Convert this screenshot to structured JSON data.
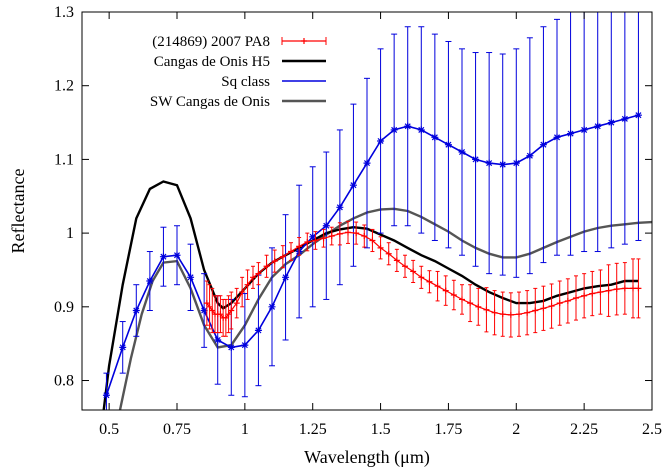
{
  "chart_data": {
    "type": "line",
    "title": "",
    "xlabel": "Wavelength (μm)",
    "ylabel": "Reflectance",
    "xlim": [
      0.4,
      2.5
    ],
    "ylim": [
      0.76,
      1.3
    ],
    "xticks": [
      {
        "v": 0.5,
        "label": "0.5"
      },
      {
        "v": 0.75,
        "label": "0.75"
      },
      {
        "v": 1.0,
        "label": "1"
      },
      {
        "v": 1.25,
        "label": "1.25"
      },
      {
        "v": 1.5,
        "label": "1.5"
      },
      {
        "v": 1.75,
        "label": "1.75"
      },
      {
        "v": 2.0,
        "label": "2"
      },
      {
        "v": 2.25,
        "label": "2.25"
      },
      {
        "v": 2.5,
        "label": "2.5"
      }
    ],
    "yticks": [
      {
        "v": 0.8,
        "label": "0.8"
      },
      {
        "v": 0.9,
        "label": "0.9"
      },
      {
        "v": 1.0,
        "label": "1"
      },
      {
        "v": 1.1,
        "label": "1.1"
      },
      {
        "v": 1.2,
        "label": "1.2"
      },
      {
        "v": 1.3,
        "label": "1.3"
      }
    ],
    "grid": false,
    "legend_position": "top-left",
    "series": [
      {
        "name": "(214869) 2007 PA8",
        "style": "points-errorbars",
        "color": "#ff0000",
        "x": [
          0.86,
          0.87,
          0.88,
          0.89,
          0.9,
          0.91,
          0.92,
          0.93,
          0.94,
          0.95,
          0.97,
          0.99,
          1.01,
          1.03,
          1.05,
          1.08,
          1.11,
          1.14,
          1.17,
          1.2,
          1.23,
          1.26,
          1.29,
          1.32,
          1.35,
          1.38,
          1.41,
          1.44,
          1.47,
          1.5,
          1.53,
          1.56,
          1.59,
          1.62,
          1.65,
          1.68,
          1.71,
          1.74,
          1.77,
          1.8,
          1.83,
          1.86,
          1.89,
          1.92,
          1.95,
          1.98,
          2.01,
          2.04,
          2.07,
          2.1,
          2.13,
          2.16,
          2.19,
          2.22,
          2.25,
          2.28,
          2.31,
          2.34,
          2.37,
          2.4,
          2.43,
          2.45
        ],
        "y": [
          0.905,
          0.9,
          0.895,
          0.89,
          0.89,
          0.89,
          0.885,
          0.885,
          0.89,
          0.895,
          0.905,
          0.92,
          0.93,
          0.94,
          0.945,
          0.955,
          0.962,
          0.968,
          0.975,
          0.982,
          0.988,
          0.99,
          0.993,
          0.996,
          0.999,
          1.001,
          1.0,
          0.996,
          0.99,
          0.98,
          0.972,
          0.963,
          0.955,
          0.948,
          0.94,
          0.934,
          0.928,
          0.922,
          0.916,
          0.91,
          0.905,
          0.9,
          0.896,
          0.892,
          0.89,
          0.889,
          0.89,
          0.892,
          0.895,
          0.898,
          0.901,
          0.905,
          0.908,
          0.912,
          0.915,
          0.918,
          0.92,
          0.922,
          0.924,
          0.925,
          0.925,
          0.925
        ],
        "err": [
          0.03,
          0.03,
          0.03,
          0.025,
          0.025,
          0.025,
          0.025,
          0.025,
          0.025,
          0.025,
          0.02,
          0.02,
          0.02,
          0.015,
          0.015,
          0.015,
          0.015,
          0.015,
          0.012,
          0.012,
          0.012,
          0.012,
          0.012,
          0.012,
          0.015,
          0.015,
          0.015,
          0.015,
          0.015,
          0.015,
          0.015,
          0.015,
          0.015,
          0.015,
          0.015,
          0.015,
          0.02,
          0.02,
          0.02,
          0.02,
          0.025,
          0.025,
          0.03,
          0.03,
          0.03,
          0.03,
          0.03,
          0.03,
          0.03,
          0.03,
          0.03,
          0.03,
          0.03,
          0.03,
          0.03,
          0.03,
          0.03,
          0.035,
          0.035,
          0.035,
          0.04,
          0.04
        ]
      },
      {
        "name": "Cangas de Onis H5",
        "style": "line",
        "color": "#000000",
        "x": [
          0.48,
          0.5,
          0.55,
          0.6,
          0.65,
          0.7,
          0.75,
          0.8,
          0.85,
          0.9,
          0.92,
          0.95,
          1.0,
          1.05,
          1.1,
          1.15,
          1.2,
          1.25,
          1.3,
          1.35,
          1.4,
          1.45,
          1.5,
          1.55,
          1.6,
          1.65,
          1.7,
          1.75,
          1.8,
          1.85,
          1.9,
          1.95,
          2.0,
          2.05,
          2.1,
          2.15,
          2.2,
          2.25,
          2.3,
          2.35,
          2.4,
          2.45
        ],
        "y": [
          0.76,
          0.82,
          0.93,
          1.02,
          1.06,
          1.07,
          1.065,
          1.02,
          0.95,
          0.905,
          0.898,
          0.905,
          0.925,
          0.945,
          0.96,
          0.97,
          0.98,
          0.99,
          1.0,
          1.005,
          1.008,
          1.006,
          0.998,
          0.99,
          0.98,
          0.97,
          0.962,
          0.952,
          0.942,
          0.93,
          0.92,
          0.912,
          0.905,
          0.905,
          0.908,
          0.915,
          0.92,
          0.925,
          0.928,
          0.93,
          0.935,
          0.935
        ]
      },
      {
        "name": "Sq class",
        "style": "line-errorbars",
        "color": "#0000dd",
        "x": [
          0.49,
          0.55,
          0.6,
          0.65,
          0.7,
          0.75,
          0.8,
          0.85,
          0.9,
          0.95,
          1.0,
          1.05,
          1.1,
          1.15,
          1.2,
          1.25,
          1.3,
          1.35,
          1.4,
          1.45,
          1.5,
          1.55,
          1.6,
          1.65,
          1.7,
          1.75,
          1.8,
          1.85,
          1.9,
          1.95,
          2.0,
          2.05,
          2.1,
          2.15,
          2.2,
          2.25,
          2.3,
          2.35,
          2.4,
          2.45
        ],
        "y": [
          0.78,
          0.845,
          0.895,
          0.935,
          0.968,
          0.97,
          0.94,
          0.895,
          0.855,
          0.845,
          0.848,
          0.868,
          0.9,
          0.94,
          0.975,
          0.995,
          1.01,
          1.035,
          1.065,
          1.095,
          1.125,
          1.14,
          1.145,
          1.14,
          1.13,
          1.12,
          1.11,
          1.1,
          1.095,
          1.093,
          1.095,
          1.105,
          1.12,
          1.13,
          1.135,
          1.14,
          1.145,
          1.15,
          1.155,
          1.16
        ],
        "err": [
          0.03,
          0.035,
          0.035,
          0.04,
          0.04,
          0.04,
          0.045,
          0.05,
          0.06,
          0.065,
          0.07,
          0.075,
          0.08,
          0.085,
          0.09,
          0.095,
          0.1,
          0.105,
          0.11,
          0.115,
          0.125,
          0.13,
          0.135,
          0.14,
          0.14,
          0.14,
          0.14,
          0.145,
          0.15,
          0.15,
          0.155,
          0.16,
          0.16,
          0.16,
          0.165,
          0.165,
          0.17,
          0.17,
          0.17,
          0.17
        ]
      },
      {
        "name": "SW Cangas de Onis",
        "style": "line",
        "color": "#555555",
        "x": [
          0.54,
          0.58,
          0.62,
          0.66,
          0.7,
          0.75,
          0.8,
          0.85,
          0.9,
          0.95,
          1.0,
          1.05,
          1.1,
          1.15,
          1.2,
          1.25,
          1.3,
          1.35,
          1.4,
          1.45,
          1.5,
          1.55,
          1.6,
          1.65,
          1.7,
          1.75,
          1.8,
          1.85,
          1.9,
          1.95,
          2.0,
          2.05,
          2.1,
          2.15,
          2.2,
          2.25,
          2.3,
          2.35,
          2.4,
          2.45,
          2.5
        ],
        "y": [
          0.76,
          0.83,
          0.89,
          0.935,
          0.96,
          0.962,
          0.925,
          0.875,
          0.845,
          0.848,
          0.875,
          0.91,
          0.94,
          0.958,
          0.97,
          0.985,
          0.998,
          1.01,
          1.02,
          1.028,
          1.032,
          1.033,
          1.03,
          1.022,
          1.012,
          1.002,
          0.99,
          0.98,
          0.972,
          0.967,
          0.967,
          0.972,
          0.98,
          0.988,
          0.995,
          1.002,
          1.007,
          1.01,
          1.012,
          1.014,
          1.015
        ]
      }
    ]
  }
}
